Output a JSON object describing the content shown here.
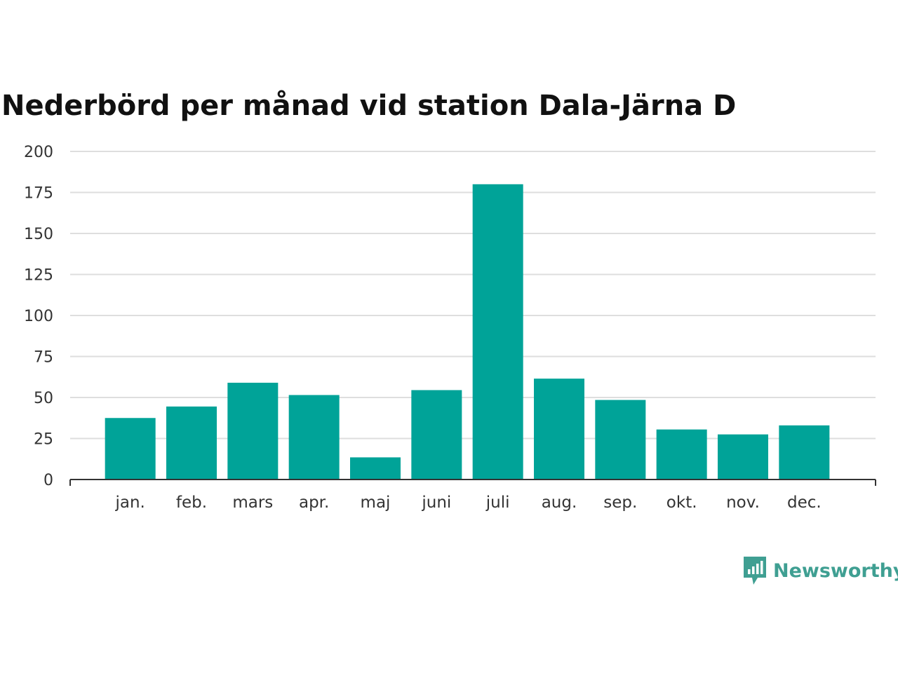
{
  "chart_data": {
    "type": "bar",
    "title": "Nederbörd per månad vid station Dala-Järna D",
    "categories": [
      "jan.",
      "feb.",
      "mars",
      "apr.",
      "maj",
      "juni",
      "juli",
      "aug.",
      "sep.",
      "okt.",
      "nov.",
      "dec."
    ],
    "values": [
      37.5,
      44.5,
      59,
      51.5,
      13.5,
      54.5,
      180,
      61.5,
      48.5,
      30.5,
      27.5,
      33
    ],
    "ylim": [
      0,
      200
    ],
    "yticks": [
      "0",
      "25",
      "50",
      "75",
      "100",
      "125",
      "150",
      "175",
      "200"
    ],
    "grid": true,
    "bar_color": "#00a398"
  },
  "logo": {
    "text": "Newsworthy",
    "icon": "newsworthy-logo-icon",
    "color": "#3f9f92"
  }
}
